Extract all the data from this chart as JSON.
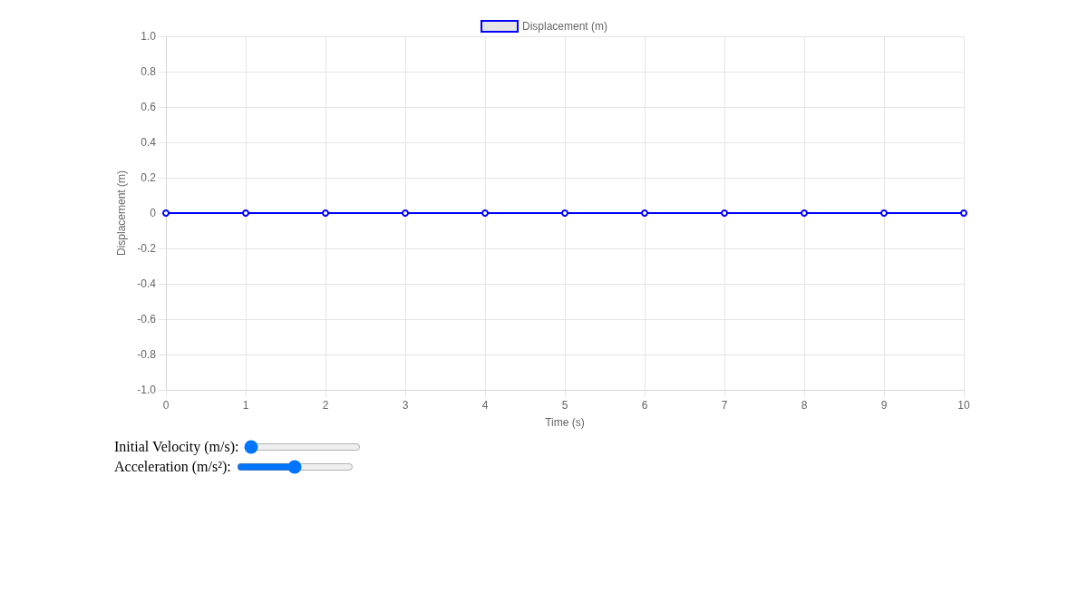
{
  "chart_data": {
    "type": "line",
    "xlabel": "Time (s)",
    "ylabel": "Displacement (m)",
    "x": [
      0,
      1,
      2,
      3,
      4,
      5,
      6,
      7,
      8,
      9,
      10
    ],
    "series": [
      {
        "name": "Displacement (m)",
        "color": "#0000ff",
        "values": [
          0,
          0,
          0,
          0,
          0,
          0,
          0,
          0,
          0,
          0,
          0
        ]
      }
    ],
    "xlim": [
      0,
      10
    ],
    "xticks": [
      0,
      1,
      2,
      3,
      4,
      5,
      6,
      7,
      8,
      9,
      10
    ],
    "ylim": [
      -1,
      1
    ],
    "yticks": [
      {
        "value": -1,
        "label": "-1.0"
      },
      -0.8,
      -0.6,
      -0.4,
      -0.2,
      0,
      0.2,
      0.4,
      0.6,
      0.8,
      {
        "value": 1,
        "label": "1.0"
      }
    ],
    "grid": true,
    "legend": "top",
    "marker": "circle",
    "line_style": "solid",
    "annotations": [
      "Initial Velocity (m/s):",
      "Acceleration (m/s²):"
    ]
  }
}
